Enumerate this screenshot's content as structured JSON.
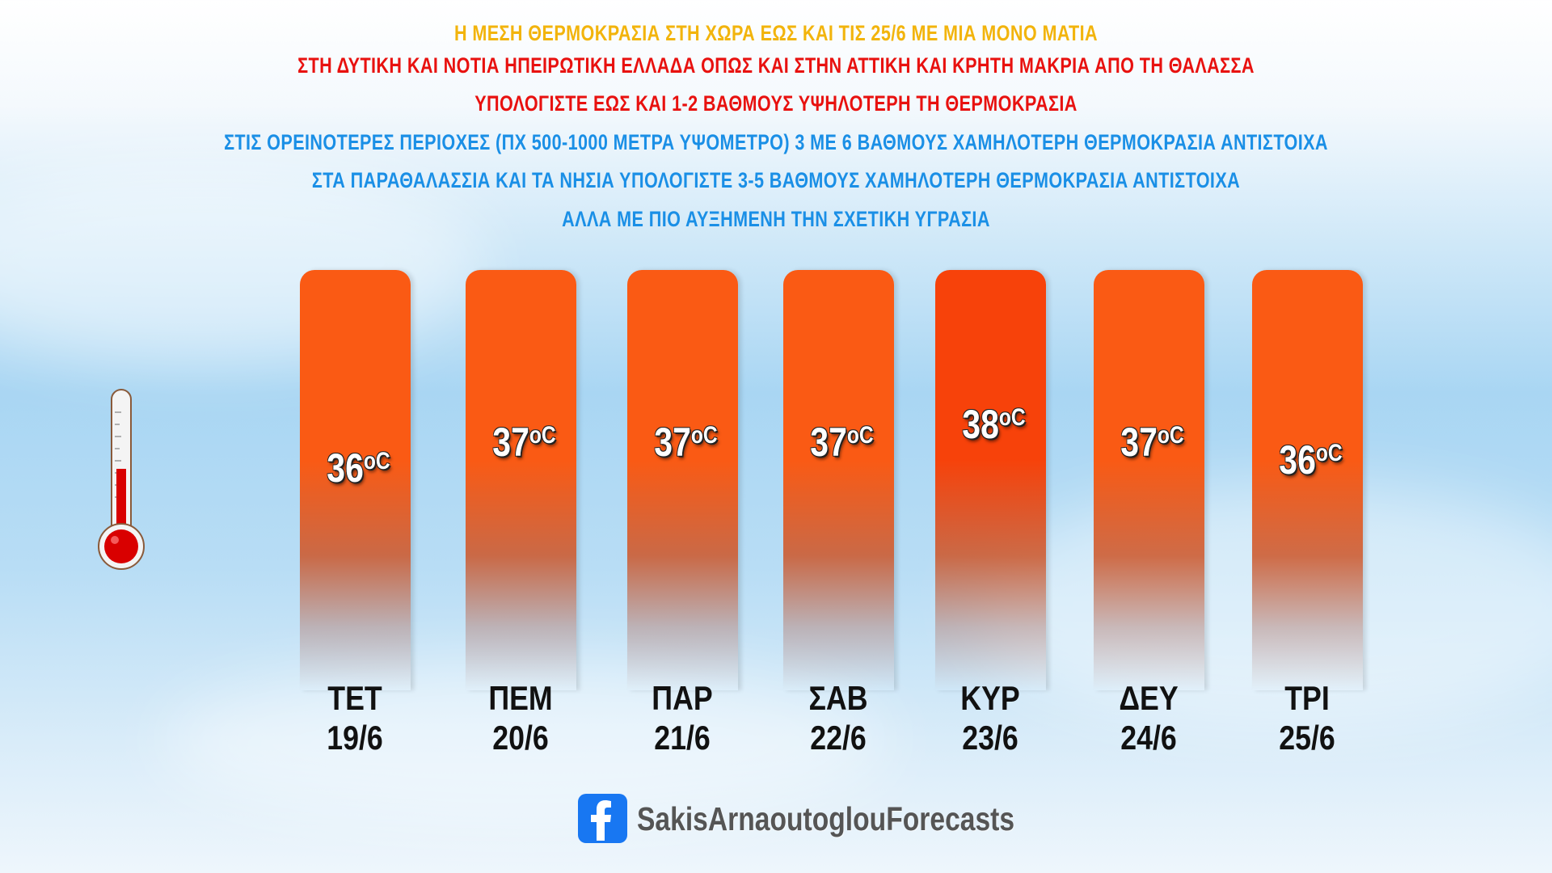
{
  "header": {
    "lines": [
      {
        "text": "Η ΜΕΣΗ ΘΕΡΜΟΚΡΑΣΙΑ ΣΤΗ ΧΩΡΑ ΕΩΣ ΚΑΙ ΤΙΣ 25/6 ΜΕ ΜΙΑ ΜΟΝΟ ΜΑΤΙΑ",
        "color": "#f2b40c"
      },
      {
        "text": "ΣΤΗ ΔΥΤΙΚΗ ΚΑΙ ΝΟΤΙΑ ΗΠΕΙΡΩΤΙΚΗ ΕΛΛΑΔΑ ΟΠΩΣ ΚΑΙ ΣΤΗΝ ΑΤΤΙΚΗ ΚΑΙ ΚΡΗΤΗ ΜΑΚΡΙΑ ΑΠΟ ΤΗ ΘΑΛΑΣΣΑ",
        "color": "#e8110f"
      },
      {
        "text": "ΥΠΟΛΟΓΙΣΤΕ ΕΩΣ ΚΑΙ 1-2 ΒΑΘΜΟΥΣ ΥΨΗΛΟΤΕΡΗ ΤΗ ΘΕΡΜΟΚΡΑΣΙΑ",
        "color": "#e8110f"
      },
      {
        "text": "ΣΤΙΣ ΟΡΕΙΝΟΤΕΡΕΣ ΠΕΡΙΟΧΕΣ (ΠΧ 500-1000 ΜΕΤΡΑ ΥΨΟΜΕΤΡΟ) 3 ΜΕ 6 ΒΑΘΜΟΥΣ ΧΑΜΗΛΟΤΕΡΗ ΘΕΡΜΟΚΡΑΣΙΑ ΑΝΤΙΣΤΟΙΧΑ",
        "color": "#1a8fe6"
      },
      {
        "text": "ΣΤΑ ΠΑΡΑΘΑΛΑΣΣΙΑ ΚΑΙ ΤΑ ΝΗΣΙΑ ΥΠΟΛΟΓΙΣΤΕ 3-5 ΒΑΘΜΟΥΣ ΧΑΜΗΛΟΤΕΡΗ ΘΕΡΜΟΚΡΑΣΙΑ ΑΝΤΙΣΤΟΙΧΑ",
        "color": "#1a8fe6"
      },
      {
        "text": "ΑΛΛΑ ΜΕ ΠΙΟ ΑΥΞΗΜΕΝΗ ΤΗΝ ΣΧΕΤΙΚΗ ΥΓΡΑΣΙΑ",
        "color": "#1a8fe6"
      }
    ]
  },
  "chart_data": {
    "type": "bar",
    "unit": "°C",
    "categories": [
      {
        "day": "ΤΕΤ",
        "date": "19/6"
      },
      {
        "day": "ΠΕΜ",
        "date": "20/6"
      },
      {
        "day": "ΠΑΡ",
        "date": "21/6"
      },
      {
        "day": "ΣΑΒ",
        "date": "22/6"
      },
      {
        "day": "ΚΥΡ",
        "date": "23/6"
      },
      {
        "day": "ΔΕΥ",
        "date": "24/6"
      },
      {
        "day": "ΤΡΙ",
        "date": "25/6"
      }
    ],
    "values": [
      36,
      37,
      37,
      37,
      38,
      37,
      36
    ],
    "bar_color": "#fa5a14",
    "max_bar_color": "#f7420a"
  },
  "footer": {
    "facebook_icon": "facebook-icon",
    "page_name": "SakisArnaoutoglouForecasts",
    "icon_color": "#1877f2"
  },
  "decor": {
    "thermometer_icon": "thermometer-icon"
  }
}
